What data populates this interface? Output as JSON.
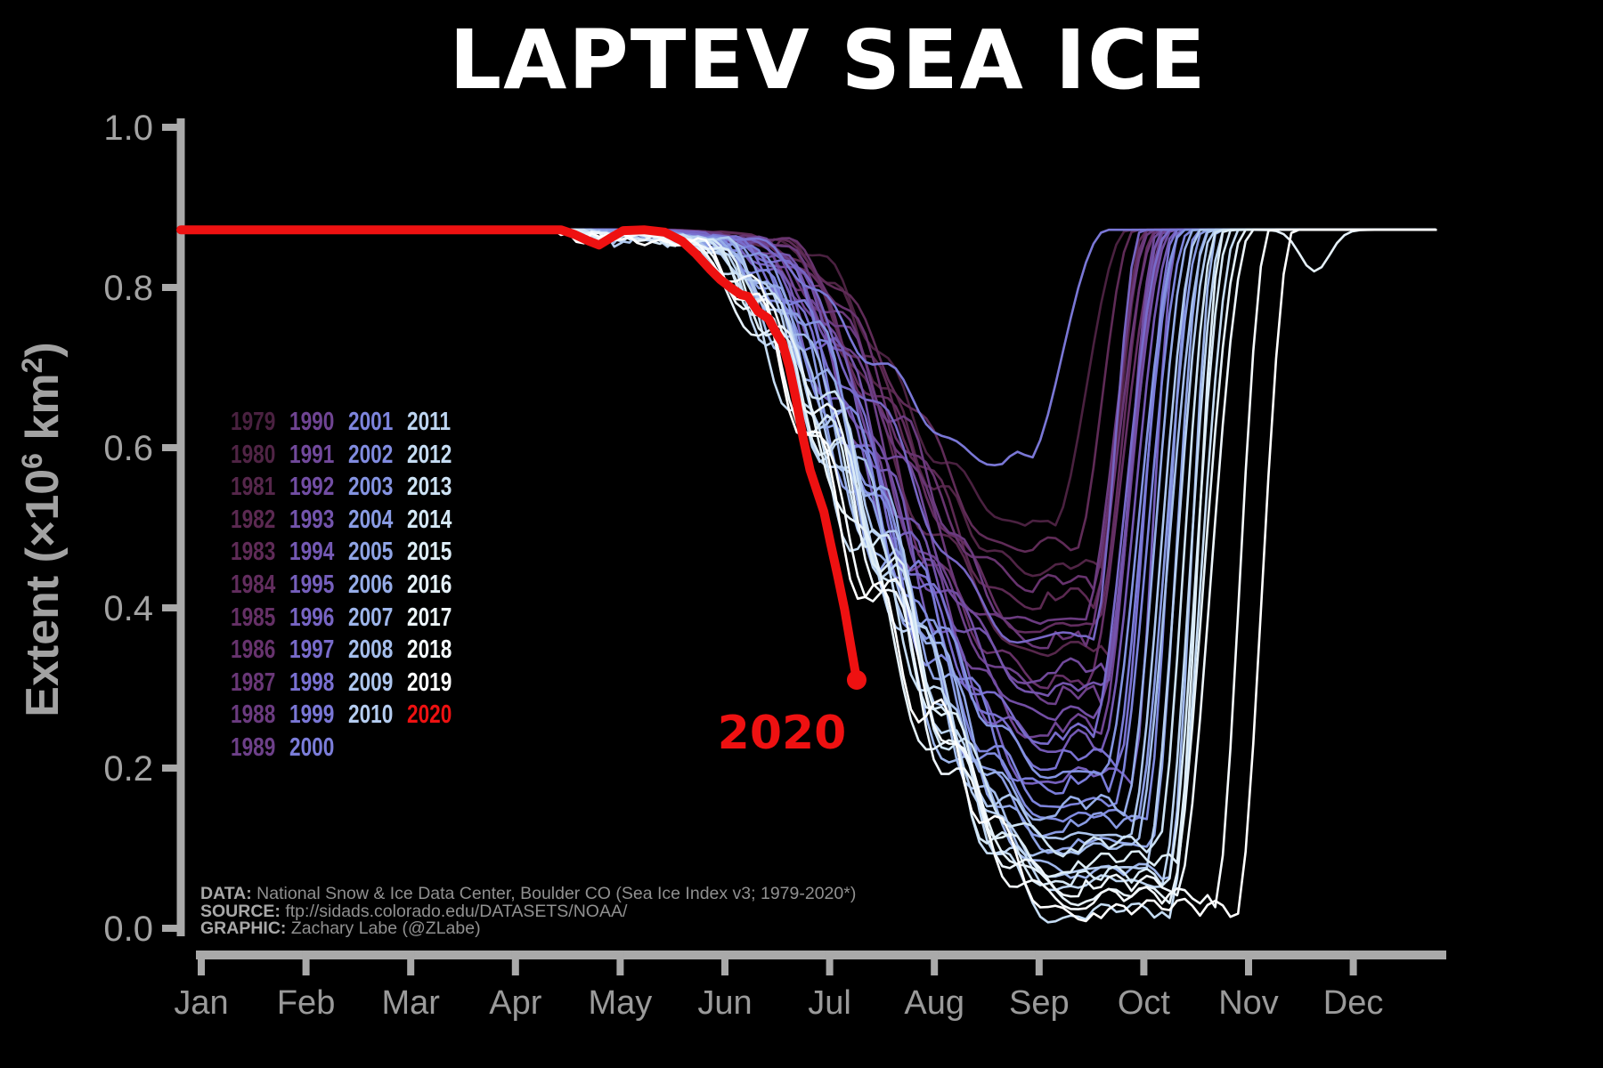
{
  "title": "LAPTEV SEA ICE",
  "annotation_2020": "2020",
  "credits": [
    {
      "label": "DATA:",
      "text": " National Snow & Ice Data Center, Boulder CO (Sea Ice Index v3; 1979-2020*)"
    },
    {
      "label": "SOURCE:",
      "text": " ftp://sidads.colorado.edu/DATASETS/NOAA/"
    },
    {
      "label": "GRAPHIC:",
      "text": " Zachary Labe (@ZLabe)"
    }
  ],
  "colors": {
    "background": "#000000",
    "axis": "#a9a9a9",
    "ytick_labels": "#a3a3a3",
    "month_labels": "#9a9a9a",
    "title": "#ffffff",
    "highlight_2020": "#ee1111"
  },
  "chart_data": {
    "type": "line",
    "title": "LAPTEV SEA ICE",
    "ylabel_parts": {
      "prefix": "Extent (",
      "times_base": "×10",
      "exp1": "6",
      "unit": " km",
      "exp2": "2",
      "suffix": ")"
    },
    "ylim": [
      0.0,
      1.0
    ],
    "ytick_labels": [
      "0.0",
      "0.2",
      "0.4",
      "0.6",
      "0.8",
      "1.0"
    ],
    "months": [
      "Jan",
      "Feb",
      "Mar",
      "Apr",
      "May",
      "Jun",
      "Jul",
      "Aug",
      "Sep",
      "Oct",
      "Nov",
      "Dec"
    ],
    "grid": false,
    "legend_position": "center-left",
    "max_extent_plateau": 0.872,
    "series_2020": {
      "name": "2020",
      "color": "#ee1111",
      "ends_with_dot": true,
      "points_day_extent": [
        [
          0,
          0.872
        ],
        [
          60,
          0.872
        ],
        [
          95,
          0.872
        ],
        [
          110,
          0.872
        ],
        [
          114,
          0.866
        ],
        [
          118,
          0.858
        ],
        [
          121,
          0.853
        ],
        [
          124,
          0.861
        ],
        [
          128,
          0.871
        ],
        [
          134,
          0.872
        ],
        [
          140,
          0.869
        ],
        [
          145,
          0.858
        ],
        [
          149,
          0.842
        ],
        [
          153,
          0.823
        ],
        [
          156,
          0.81
        ],
        [
          159,
          0.8
        ],
        [
          162,
          0.791
        ],
        [
          164,
          0.789
        ],
        [
          167,
          0.77
        ],
        [
          170,
          0.761
        ],
        [
          172,
          0.745
        ],
        [
          174,
          0.731
        ],
        [
          176,
          0.701
        ],
        [
          178,
          0.66
        ],
        [
          180,
          0.612
        ],
        [
          182,
          0.572
        ],
        [
          184,
          0.546
        ],
        [
          186,
          0.52
        ],
        [
          188,
          0.479
        ],
        [
          190,
          0.44
        ],
        [
          192,
          0.398
        ],
        [
          194,
          0.348
        ],
        [
          195.5,
          0.31
        ]
      ]
    },
    "years": [
      {
        "year": 1979,
        "color": "#4a2140",
        "melt_start_day": 170,
        "min_day": 246,
        "min_extent": 0.5,
        "freeze_day": 274
      },
      {
        "year": 1980,
        "color": "#502445",
        "melt_start_day": 168,
        "min_day": 248,
        "min_extent": 0.44,
        "freeze_day": 280
      },
      {
        "year": 1981,
        "color": "#56274b",
        "melt_start_day": 162,
        "min_day": 251,
        "min_extent": 0.34,
        "freeze_day": 284
      },
      {
        "year": 1982,
        "color": "#5b2951",
        "melt_start_day": 166,
        "min_day": 249,
        "min_extent": 0.4,
        "freeze_day": 279
      },
      {
        "year": 1983,
        "color": "#5f2b57",
        "melt_start_day": 172,
        "min_day": 245,
        "min_extent": 0.47,
        "freeze_day": 276
      },
      {
        "year": 1984,
        "color": "#622d5e",
        "melt_start_day": 165,
        "min_day": 250,
        "min_extent": 0.37,
        "freeze_day": 282
      },
      {
        "year": 1985,
        "color": "#653066",
        "melt_start_day": 161,
        "min_day": 252,
        "min_extent": 0.3,
        "freeze_day": 285
      },
      {
        "year": 1986,
        "color": "#67336e",
        "melt_start_day": 168,
        "min_day": 248,
        "min_extent": 0.42,
        "freeze_day": 280
      },
      {
        "year": 1987,
        "color": "#693777",
        "melt_start_day": 163,
        "min_day": 251,
        "min_extent": 0.35,
        "freeze_day": 283
      },
      {
        "year": 1988,
        "color": "#6b3b80",
        "melt_start_day": 166,
        "min_day": 250,
        "min_extent": 0.38,
        "freeze_day": 281
      },
      {
        "year": 1989,
        "color": "#6d4089",
        "melt_start_day": 160,
        "min_day": 253,
        "min_extent": 0.28,
        "freeze_day": 286
      },
      {
        "year": 1990,
        "color": "#6f4492",
        "melt_start_day": 157,
        "min_day": 252,
        "min_extent": 0.24,
        "freeze_day": 285
      },
      {
        "year": 1991,
        "color": "#71499b",
        "melt_start_day": 161,
        "min_day": 250,
        "min_extent": 0.31,
        "freeze_day": 283
      },
      {
        "year": 1992,
        "color": "#724ea4",
        "melt_start_day": 158,
        "min_day": 253,
        "min_extent": 0.26,
        "freeze_day": 287
      },
      {
        "year": 1993,
        "color": "#7354ac",
        "melt_start_day": 159,
        "min_day": 251,
        "min_extent": 0.29,
        "freeze_day": 284
      },
      {
        "year": 1994,
        "color": "#7459b4",
        "melt_start_day": 156,
        "min_day": 254,
        "min_extent": 0.22,
        "freeze_day": 288
      },
      {
        "year": 1995,
        "color": "#755fbc",
        "melt_start_day": 154,
        "min_day": 255,
        "min_extent": 0.18,
        "freeze_day": 289
      },
      {
        "year": 1996,
        "color": "#7765c4",
        "melt_start_day": 164,
        "min_day": 246,
        "min_extent": 0.36,
        "freeze_day": 278
      },
      {
        "year": 1997,
        "color": "#786bcb",
        "melt_start_day": 157,
        "min_day": 252,
        "min_extent": 0.23,
        "freeze_day": 286
      },
      {
        "year": 1998,
        "color": "#7971d1",
        "melt_start_day": 155,
        "min_day": 253,
        "min_extent": 0.2,
        "freeze_day": 288
      },
      {
        "year": 1999,
        "color": "#7a77d6",
        "melt_start_day": 160,
        "min_day": 238,
        "min_extent": 0.58,
        "freeze_day": 268
      },
      {
        "year": 2000,
        "color": "#7b7dd9",
        "melt_start_day": 153,
        "min_day": 256,
        "min_extent": 0.17,
        "freeze_day": 290
      },
      {
        "year": 2001,
        "color": "#7d84dc",
        "melt_start_day": 152,
        "min_day": 255,
        "min_extent": 0.15,
        "freeze_day": 292
      },
      {
        "year": 2002,
        "color": "#808bdf",
        "melt_start_day": 150,
        "min_day": 257,
        "min_extent": 0.13,
        "freeze_day": 294
      },
      {
        "year": 2003,
        "color": "#8493e1",
        "melt_start_day": 154,
        "min_day": 254,
        "min_extent": 0.19,
        "freeze_day": 290
      },
      {
        "year": 2004,
        "color": "#899be3",
        "melt_start_day": 149,
        "min_day": 256,
        "min_extent": 0.12,
        "freeze_day": 296
      },
      {
        "year": 2005,
        "color": "#8fa4e5",
        "melt_start_day": 148,
        "min_day": 258,
        "min_extent": 0.1,
        "freeze_day": 297
      },
      {
        "year": 2006,
        "color": "#96ade8",
        "melt_start_day": 151,
        "min_day": 255,
        "min_extent": 0.14,
        "freeze_day": 293
      },
      {
        "year": 2007,
        "color": "#9db5ea",
        "melt_start_day": 146,
        "min_day": 259,
        "min_extent": 0.06,
        "freeze_day": 300
      },
      {
        "year": 2008,
        "color": "#a5beec",
        "melt_start_day": 147,
        "min_day": 257,
        "min_extent": 0.09,
        "freeze_day": 298
      },
      {
        "year": 2009,
        "color": "#adc6ee",
        "melt_start_day": 149,
        "min_day": 256,
        "min_extent": 0.11,
        "freeze_day": 295
      },
      {
        "year": 2010,
        "color": "#b5cdf0",
        "melt_start_day": 145,
        "min_day": 258,
        "min_extent": 0.07,
        "freeze_day": 299
      },
      {
        "year": 2011,
        "color": "#bdd5f1",
        "melt_start_day": 143,
        "min_day": 260,
        "min_extent": 0.05,
        "freeze_day": 302
      },
      {
        "year": 2012,
        "color": "#c5dcf3",
        "melt_start_day": 140,
        "min_day": 263,
        "min_extent": 0.01,
        "freeze_day": 306
      },
      {
        "year": 2013,
        "color": "#cde2f4",
        "melt_start_day": 147,
        "min_day": 257,
        "min_extent": 0.09,
        "freeze_day": 300
      },
      {
        "year": 2014,
        "color": "#d5e8f6",
        "melt_start_day": 144,
        "min_day": 259,
        "min_extent": 0.05,
        "freeze_day": 304
      },
      {
        "year": 2015,
        "color": "#ddedf7",
        "melt_start_day": 145,
        "min_day": 258,
        "min_extent": 0.07,
        "freeze_day": 302
      },
      {
        "year": 2016,
        "color": "#e5f1f9",
        "melt_start_day": 139,
        "min_day": 261,
        "min_extent": 0.03,
        "freeze_day": 308,
        "nov_dip": true
      },
      {
        "year": 2017,
        "color": "#edf5fb",
        "melt_start_day": 142,
        "min_day": 260,
        "min_extent": 0.04,
        "freeze_day": 310
      },
      {
        "year": 2018,
        "color": "#f5fafd",
        "melt_start_day": 140,
        "min_day": 262,
        "min_extent": 0.025,
        "freeze_day": 315
      },
      {
        "year": 2019,
        "color": "#ffffff",
        "melt_start_day": 138,
        "min_day": 263,
        "min_extent": 0.01,
        "freeze_day": 322
      }
    ]
  }
}
